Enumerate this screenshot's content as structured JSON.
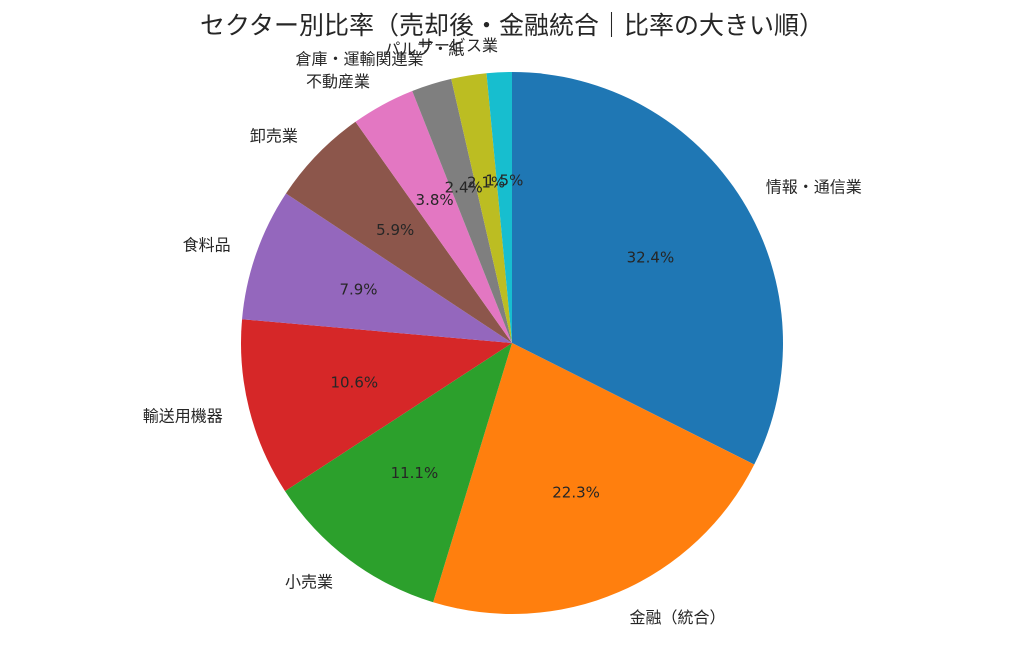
{
  "chart_data": {
    "type": "pie",
    "title": "セクター別比率（売却後・金融統合｜比率の大きい順）",
    "categories": [
      "情報・通信業",
      "金融（統合）",
      "小売業",
      "輸送用機器",
      "食料品",
      "卸売業",
      "不動産業",
      "倉庫・運輸関連業",
      "パルプ・紙",
      "サービス業"
    ],
    "values": [
      32.4,
      22.3,
      11.1,
      10.6,
      7.9,
      5.9,
      3.8,
      2.4,
      2.1,
      1.5
    ],
    "value_labels": [
      "32.4%",
      "22.3%",
      "11.1%",
      "10.6%",
      "7.9%",
      "5.9%",
      "3.8%",
      "2.4%",
      "2.1%",
      "1.5%"
    ],
    "colors": [
      "#1f77b4",
      "#ff7f0e",
      "#2ca02c",
      "#d62728",
      "#9467bd",
      "#8c564b",
      "#e377c2",
      "#7f7f7f",
      "#bcbd22",
      "#17becf"
    ],
    "start_angle_deg": 90,
    "direction": "clockwise",
    "legend": "none"
  }
}
